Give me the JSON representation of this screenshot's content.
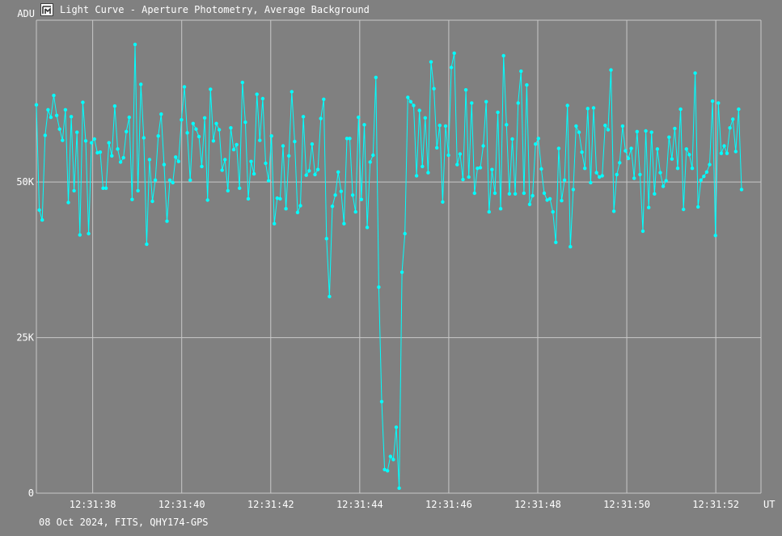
{
  "window": {
    "title": "Light Curve - Aperture Photometry, Average Background",
    "icon": "app-icon"
  },
  "footer": {
    "text": "08 Oct 2024, FITS, QHY174-GPS"
  },
  "colors": {
    "background": "#808080",
    "grid": "#c8c8c8",
    "series": "#00ffff",
    "text": "#ffffff"
  },
  "chart_data": {
    "type": "line",
    "title": "Light Curve - Aperture Photometry, Average Background",
    "ylabel": "ADU",
    "xlabel": "UT",
    "ylim": [
      0,
      76000
    ],
    "xlim": [
      "12:31:36.735",
      "12:31:53.015"
    ],
    "y_ticks": [
      0,
      25000,
      50000
    ],
    "y_tick_labels": [
      "0",
      "25K",
      "50K"
    ],
    "x_tick_labels": [
      "12:31:38",
      "12:31:40",
      "12:31:42",
      "12:31:44",
      "12:31:46",
      "12:31:48",
      "12:31:50",
      "12:31:52"
    ],
    "grid": true,
    "markers": true,
    "series": [
      {
        "x_start": "12:31:36.735",
        "x_step_s": 0.0652,
        "values": [
          62400,
          45500,
          43900,
          57500,
          61600,
          60400,
          63900,
          60700,
          58500,
          56700,
          61600,
          46700,
          60500,
          48600,
          58000,
          41500,
          62800,
          56600,
          41700,
          56300,
          56900,
          54700,
          54800,
          49000,
          49000,
          56300,
          54200,
          62200,
          55300,
          53200,
          53900,
          58100,
          60400,
          47200,
          72100,
          48600,
          65700,
          57100,
          40000,
          53600,
          46900,
          50300,
          57400,
          60900,
          52800,
          43700,
          50300,
          49900,
          54000,
          53300,
          60000,
          65300,
          57900,
          50300,
          59400,
          58500,
          57300,
          52500,
          60300,
          47100,
          64900,
          56600,
          59400,
          58400,
          51900,
          53600,
          48600,
          58700,
          55200,
          56000,
          49000,
          66000,
          59600,
          47300,
          53300,
          51300,
          64100,
          56700,
          63400,
          53000,
          50200,
          57400,
          43300,
          47400,
          47300,
          55800,
          45700,
          54200,
          64500,
          56500,
          45100,
          46200,
          60500,
          51100,
          51800,
          56100,
          51200,
          52000,
          60200,
          63300,
          40900,
          31600,
          46100,
          47900,
          51600,
          48500,
          43300,
          57000,
          57000,
          47900,
          45200,
          60400,
          47200,
          59200,
          42700,
          53200,
          54300,
          66800,
          33100,
          14700,
          3800,
          3600,
          5900,
          5400,
          10600,
          800,
          35500,
          41700,
          63600,
          62900,
          62300,
          51000,
          61500,
          52500,
          60300,
          51500,
          69300,
          65000,
          55500,
          59100,
          46800,
          59000,
          54300,
          68400,
          70700,
          52800,
          54500,
          50400,
          64800,
          50800,
          62700,
          48200,
          52200,
          52300,
          55800,
          62900,
          45200,
          52000,
          48200,
          61200,
          45700,
          70300,
          59200,
          48100,
          56900,
          48100,
          62700,
          67800,
          48200,
          65600,
          46400,
          47800,
          56100,
          57000,
          52100,
          48200,
          47100,
          47300,
          45200,
          40300,
          55400,
          47000,
          50300,
          62300,
          39600,
          48800,
          59000,
          58000,
          54800,
          52200,
          61800,
          49900,
          61900,
          51500,
          50800,
          51000,
          59100,
          58400,
          68000,
          45300,
          51200,
          53100,
          59000,
          55000,
          53800,
          55400,
          50600,
          58100,
          51200,
          42100,
          58200,
          45900,
          58000,
          48100,
          55300,
          51500,
          49300,
          50200,
          57200,
          53700,
          58600,
          52200,
          61700,
          45600,
          55300,
          54400,
          52200,
          67500,
          46000,
          50300,
          50900,
          51600,
          52800,
          63000,
          41400,
          62700,
          54600,
          55800,
          54600,
          58700,
          60100,
          54900,
          61700,
          48800
        ]
      }
    ]
  }
}
